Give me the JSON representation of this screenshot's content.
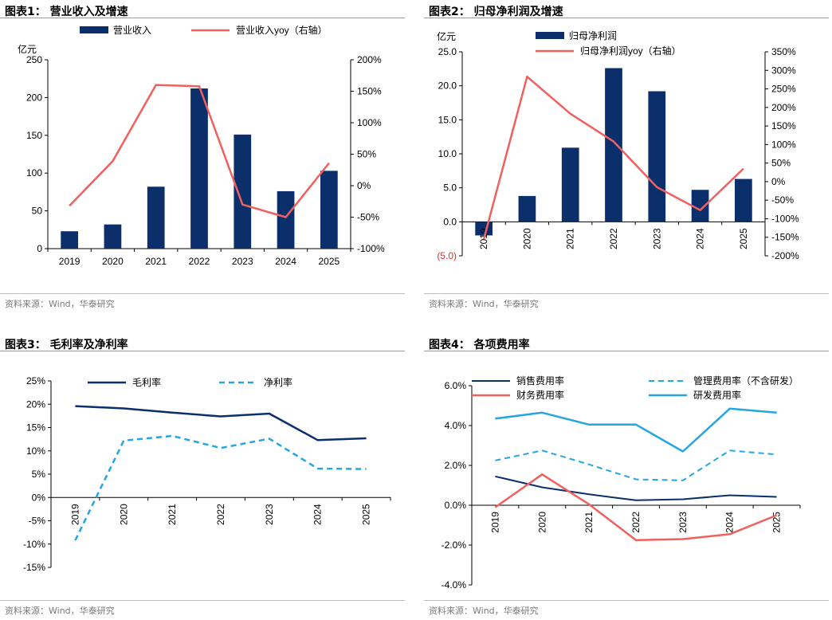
{
  "charts": [
    {
      "title": "图表1： 营业收入及增速",
      "source": "资料来源：Wind，华泰研究"
    },
    {
      "title": "图表2： 归母净利润及增速",
      "source": "资料来源：Wind，华泰研究"
    },
    {
      "title": "图表3： 毛利率及净利率",
      "source": "资料来源：Wind，华泰研究"
    },
    {
      "title": "图表4： 各项费用率",
      "source": "资料来源：Wind，华泰研究"
    }
  ],
  "chart_data": [
    {
      "type": "bar",
      "title": "图表1： 营业收入及增速",
      "unit_label": "亿元",
      "categories": [
        "2019",
        "2020",
        "2021",
        "2022",
        "2023",
        "2024",
        "2025"
      ],
      "series": [
        {
          "name": "营业收入",
          "kind": "bar",
          "axis": "left",
          "color": "#0b2f6b",
          "values": [
            23,
            32,
            82,
            212,
            151,
            76,
            103
          ]
        },
        {
          "name": "营业收入yoy（右轴）",
          "kind": "line",
          "axis": "right",
          "color": "#f0605f",
          "values": [
            -32,
            39,
            160,
            158,
            -30,
            -50,
            36
          ]
        }
      ],
      "ylim": [
        0,
        250
      ],
      "yticks": [
        0,
        50,
        100,
        150,
        200,
        250
      ],
      "ytick_labels": [
        "0",
        "50",
        "100",
        "150",
        "200",
        "250"
      ],
      "y2lim": [
        -100,
        200
      ],
      "y2ticks": [
        -100,
        -50,
        0,
        50,
        100,
        150,
        200
      ],
      "y2tick_labels": [
        "-100%",
        "-50%",
        "0%",
        "50%",
        "100%",
        "150%",
        "200%"
      ],
      "legend": "top"
    },
    {
      "type": "bar",
      "title": "图表2： 归母净利润及增速",
      "unit_label": "亿元",
      "categories": [
        "2019",
        "2020",
        "2021",
        "2022",
        "2023",
        "2024",
        "2025"
      ],
      "series": [
        {
          "name": "归母净利润",
          "kind": "bar",
          "axis": "left",
          "color": "#0b2f6b",
          "values": [
            -2.0,
            3.8,
            10.9,
            22.6,
            19.2,
            4.7,
            6.3
          ]
        },
        {
          "name": "归母净利润yoy（右轴）",
          "kind": "line",
          "axis": "right",
          "color": "#f0605f",
          "values": [
            -155,
            283,
            183,
            108,
            -15,
            -77,
            35
          ]
        }
      ],
      "ylim": [
        -5,
        25
      ],
      "yticks": [
        -5,
        0,
        5,
        10,
        15,
        20,
        25
      ],
      "ytick_labels": [
        "(5.0)",
        "0.0",
        "5.0",
        "10.0",
        "15.0",
        "20.0",
        "25.0"
      ],
      "y2lim": [
        -200,
        350
      ],
      "y2ticks": [
        -200,
        -150,
        -100,
        -50,
        0,
        50,
        100,
        150,
        200,
        250,
        300,
        350
      ],
      "y2tick_labels": [
        "-200%",
        "-150%",
        "-100%",
        "-50%",
        "0%",
        "50%",
        "100%",
        "150%",
        "200%",
        "250%",
        "300%",
        "350%"
      ],
      "legend": "top-left"
    },
    {
      "type": "line",
      "title": "图表3： 毛利率及净利率",
      "categories": [
        "2019",
        "2020",
        "2021",
        "2022",
        "2023",
        "2024",
        "2025"
      ],
      "series": [
        {
          "name": "毛利率",
          "style": "solid",
          "color": "#0b2f6b",
          "values": [
            19.6,
            19.1,
            18.2,
            17.4,
            18.0,
            12.3,
            12.7
          ]
        },
        {
          "name": "净利率",
          "style": "dashed",
          "color": "#24a6e0",
          "values": [
            -9.2,
            12.2,
            13.2,
            10.6,
            12.6,
            6.2,
            6.1
          ]
        }
      ],
      "ylim": [
        -15,
        25
      ],
      "yticks": [
        -15,
        -10,
        -5,
        0,
        5,
        10,
        15,
        20,
        25
      ],
      "ytick_labels": [
        "-15%",
        "-10%",
        "-5%",
        "0%",
        "5%",
        "10%",
        "15%",
        "20%",
        "25%"
      ],
      "legend": "top"
    },
    {
      "type": "line",
      "title": "图表4： 各项费用率",
      "categories": [
        "2019",
        "2020",
        "2021",
        "2022",
        "2023",
        "2024",
        "2025"
      ],
      "series": [
        {
          "name": "销售费用率",
          "style": "solid",
          "color": "#0b2f6b",
          "width": 2,
          "values": [
            1.45,
            0.9,
            0.55,
            0.25,
            0.3,
            0.5,
            0.42
          ]
        },
        {
          "name": "管理费用率（不含研发）",
          "style": "dashed",
          "color": "#24a6e0",
          "width": 2,
          "values": [
            2.25,
            2.75,
            2.05,
            1.3,
            1.25,
            2.75,
            2.55
          ]
        },
        {
          "name": "财务费用率",
          "style": "solid",
          "color": "#f0605f",
          "width": 2.5,
          "values": [
            -0.1,
            1.55,
            0.05,
            -1.75,
            -1.7,
            -1.45,
            -0.5
          ]
        },
        {
          "name": "研发费用率",
          "style": "solid",
          "color": "#24a6e0",
          "width": 2.5,
          "values": [
            4.35,
            4.65,
            4.05,
            4.05,
            2.7,
            4.85,
            4.65
          ]
        }
      ],
      "ylim": [
        -4,
        6
      ],
      "yticks": [
        -4,
        -2,
        0,
        2,
        4,
        6
      ],
      "ytick_labels": [
        "-4.0%",
        "-2.0%",
        "0.0%",
        "2.0%",
        "4.0%",
        "6.0%"
      ],
      "legend": "top"
    }
  ]
}
